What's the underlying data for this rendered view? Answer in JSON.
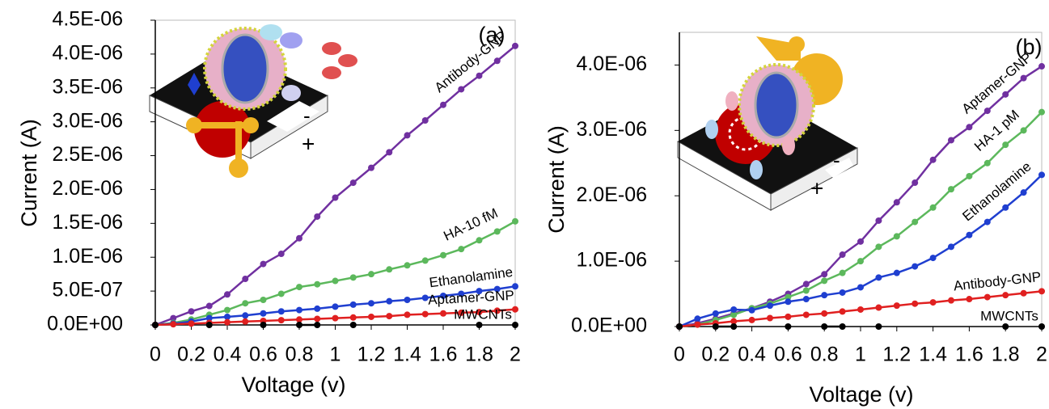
{
  "chart_data": [
    {
      "type": "line",
      "annotation": "(a)",
      "x_label": "Voltage (v)",
      "y_label": "Current (A)",
      "x": [
        0,
        0.1,
        0.2,
        0.3,
        0.4,
        0.5,
        0.6,
        0.7,
        0.8,
        0.9,
        1,
        1.1,
        1.2,
        1.3,
        1.4,
        1.5,
        1.6,
        1.7,
        1.8,
        1.9,
        2
      ],
      "xlim": [
        0,
        2
      ],
      "xticks": [
        0,
        0.2,
        0.4,
        0.6,
        0.8,
        1,
        1.2,
        1.4,
        1.6,
        1.8,
        2
      ],
      "ylim": [
        0,
        4.5e-06
      ],
      "yticks": [
        {
          "value": 0,
          "label": "0.0E+00"
        },
        {
          "value": 5e-07,
          "label": "5.0E-07"
        },
        {
          "value": 1e-06,
          "label": "1.0E-06"
        },
        {
          "value": 1.5e-06,
          "label": "1.5E-06"
        },
        {
          "value": 2e-06,
          "label": "2.0E-06"
        },
        {
          "value": 2.5e-06,
          "label": "2.5E-06"
        },
        {
          "value": 3e-06,
          "label": "3.0E-06"
        },
        {
          "value": 3.5e-06,
          "label": "3.5E-06"
        },
        {
          "value": 4e-06,
          "label": "4.0E-06"
        },
        {
          "value": 4.5e-06,
          "label": "4.5E-06"
        }
      ],
      "series": [
        {
          "name": "Antibody-GNP",
          "color": "#7030a0",
          "values": [
            0,
            1e-07,
            2e-07,
            2.8e-07,
            4.5e-07,
            6.8e-07,
            9e-07,
            1.05e-06,
            1.28e-06,
            1.6e-06,
            1.88e-06,
            2.1e-06,
            2.32e-06,
            2.55e-06,
            2.8e-06,
            3.02e-06,
            3.25e-06,
            3.48e-06,
            3.68e-06,
            3.9e-06,
            4.12e-06
          ]
        },
        {
          "name": "HA-10 fM",
          "color": "#5cb85c",
          "values": [
            0,
            3e-08,
            8e-08,
            1.5e-07,
            2.2e-07,
            3.2e-07,
            3.7e-07,
            4.6e-07,
            5.6e-07,
            6e-07,
            6.5e-07,
            7e-07,
            7.5e-07,
            8.2e-07,
            8.8e-07,
            9.5e-07,
            1.03e-06,
            1.12e-06,
            1.25e-06,
            1.38e-06,
            1.53e-06
          ]
        },
        {
          "name": "Ethanolamine",
          "color": "#1f3fd0",
          "values": [
            0,
            2e-08,
            5e-08,
            1e-07,
            1.2e-07,
            1.4e-07,
            1.7e-07,
            2e-07,
            2.2e-07,
            2.4e-07,
            2.7e-07,
            3e-07,
            3.2e-07,
            3.5e-07,
            3.7e-07,
            4e-07,
            4.3e-07,
            4.6e-07,
            5e-07,
            5.3e-07,
            5.7e-07
          ]
        },
        {
          "name": "Aptamer-GNP",
          "color": "#e02020",
          "values": [
            0,
            1e-08,
            2e-08,
            3e-08,
            4e-08,
            5e-08,
            6e-08,
            7e-08,
            8e-08,
            9e-08,
            1e-07,
            1.1e-07,
            1.2e-07,
            1.3e-07,
            1.5e-07,
            1.6e-07,
            1.7e-07,
            1.8e-07,
            1.9e-07,
            2.1e-07,
            2.3e-07
          ]
        },
        {
          "name": "MWCNTs",
          "color": "#000000",
          "values": [
            0,
            null,
            null,
            0,
            null,
            null,
            0,
            null,
            0,
            0,
            null,
            0,
            null,
            null,
            null,
            null,
            null,
            null,
            0,
            null,
            0
          ]
        }
      ]
    },
    {
      "type": "line",
      "annotation": "(b)",
      "x_label": "Voltage (v)",
      "y_label": "Current (A)",
      "x": [
        0,
        0.1,
        0.2,
        0.3,
        0.4,
        0.5,
        0.6,
        0.7,
        0.8,
        0.9,
        1,
        1.1,
        1.2,
        1.3,
        1.4,
        1.5,
        1.6,
        1.7,
        1.8,
        1.9,
        2
      ],
      "xlim": [
        0,
        2
      ],
      "xticks": [
        0,
        0.2,
        0.4,
        0.6,
        0.8,
        1,
        1.2,
        1.4,
        1.6,
        1.8,
        2
      ],
      "ylim": [
        0,
        4.5e-06
      ],
      "yticks": [
        {
          "value": 0,
          "label": "0.0E+00"
        },
        {
          "value": 1e-06,
          "label": "1.0E-06"
        },
        {
          "value": 2e-06,
          "label": "2.0E-06"
        },
        {
          "value": 3e-06,
          "label": "3.0E-06"
        },
        {
          "value": 4e-06,
          "label": "4.0E-06"
        }
      ],
      "series": [
        {
          "name": "Aptamer-GNP",
          "color": "#7030a0",
          "values": [
            0,
            5e-08,
            1.2e-07,
            2e-07,
            2.8e-07,
            3.8e-07,
            5e-07,
            6.5e-07,
            8e-07,
            1.1e-06,
            1.3e-06,
            1.62e-06,
            1.9e-06,
            2.2e-06,
            2.55e-06,
            2.85e-06,
            3.05e-06,
            3.3e-06,
            3.55e-06,
            3.8e-06,
            3.98e-06
          ]
        },
        {
          "name": "HA-1 pM",
          "color": "#5cb85c",
          "values": [
            0,
            3e-08,
            1e-07,
            1.8e-07,
            2.8e-07,
            3.5e-07,
            4.5e-07,
            5.5e-07,
            7e-07,
            8.2e-07,
            1e-06,
            1.22e-06,
            1.38e-06,
            1.6e-06,
            1.82e-06,
            2.1e-06,
            2.3e-06,
            2.5e-06,
            2.78e-06,
            3e-06,
            3.28e-06
          ]
        },
        {
          "name": "Ethanolamine",
          "color": "#1f3fd0",
          "values": [
            0,
            1.2e-07,
            2e-07,
            2.6e-07,
            2.5e-07,
            3.2e-07,
            3.8e-07,
            4.2e-07,
            4.8e-07,
            5.2e-07,
            6e-07,
            7.5e-07,
            8.2e-07,
            9.2e-07,
            1.05e-06,
            1.22e-06,
            1.4e-06,
            1.6e-06,
            1.82e-06,
            2.05e-06,
            2.32e-06
          ]
        },
        {
          "name": "Antibody-GNP",
          "color": "#e02020",
          "values": [
            0,
            3e-08,
            5e-08,
            8e-08,
            1e-07,
            1.3e-07,
            1.5e-07,
            1.8e-07,
            2e-07,
            2.3e-07,
            2.6e-07,
            2.9e-07,
            3.2e-07,
            3.5e-07,
            3.7e-07,
            4e-07,
            4.2e-07,
            4.5e-07,
            4.8e-07,
            5.1e-07,
            5.4e-07
          ]
        },
        {
          "name": "MWCNTs",
          "color": "#000000",
          "values": [
            0,
            null,
            0,
            0,
            null,
            null,
            0,
            null,
            0,
            0,
            null,
            0,
            null,
            null,
            null,
            null,
            null,
            null,
            0,
            null,
            0
          ]
        }
      ]
    }
  ]
}
